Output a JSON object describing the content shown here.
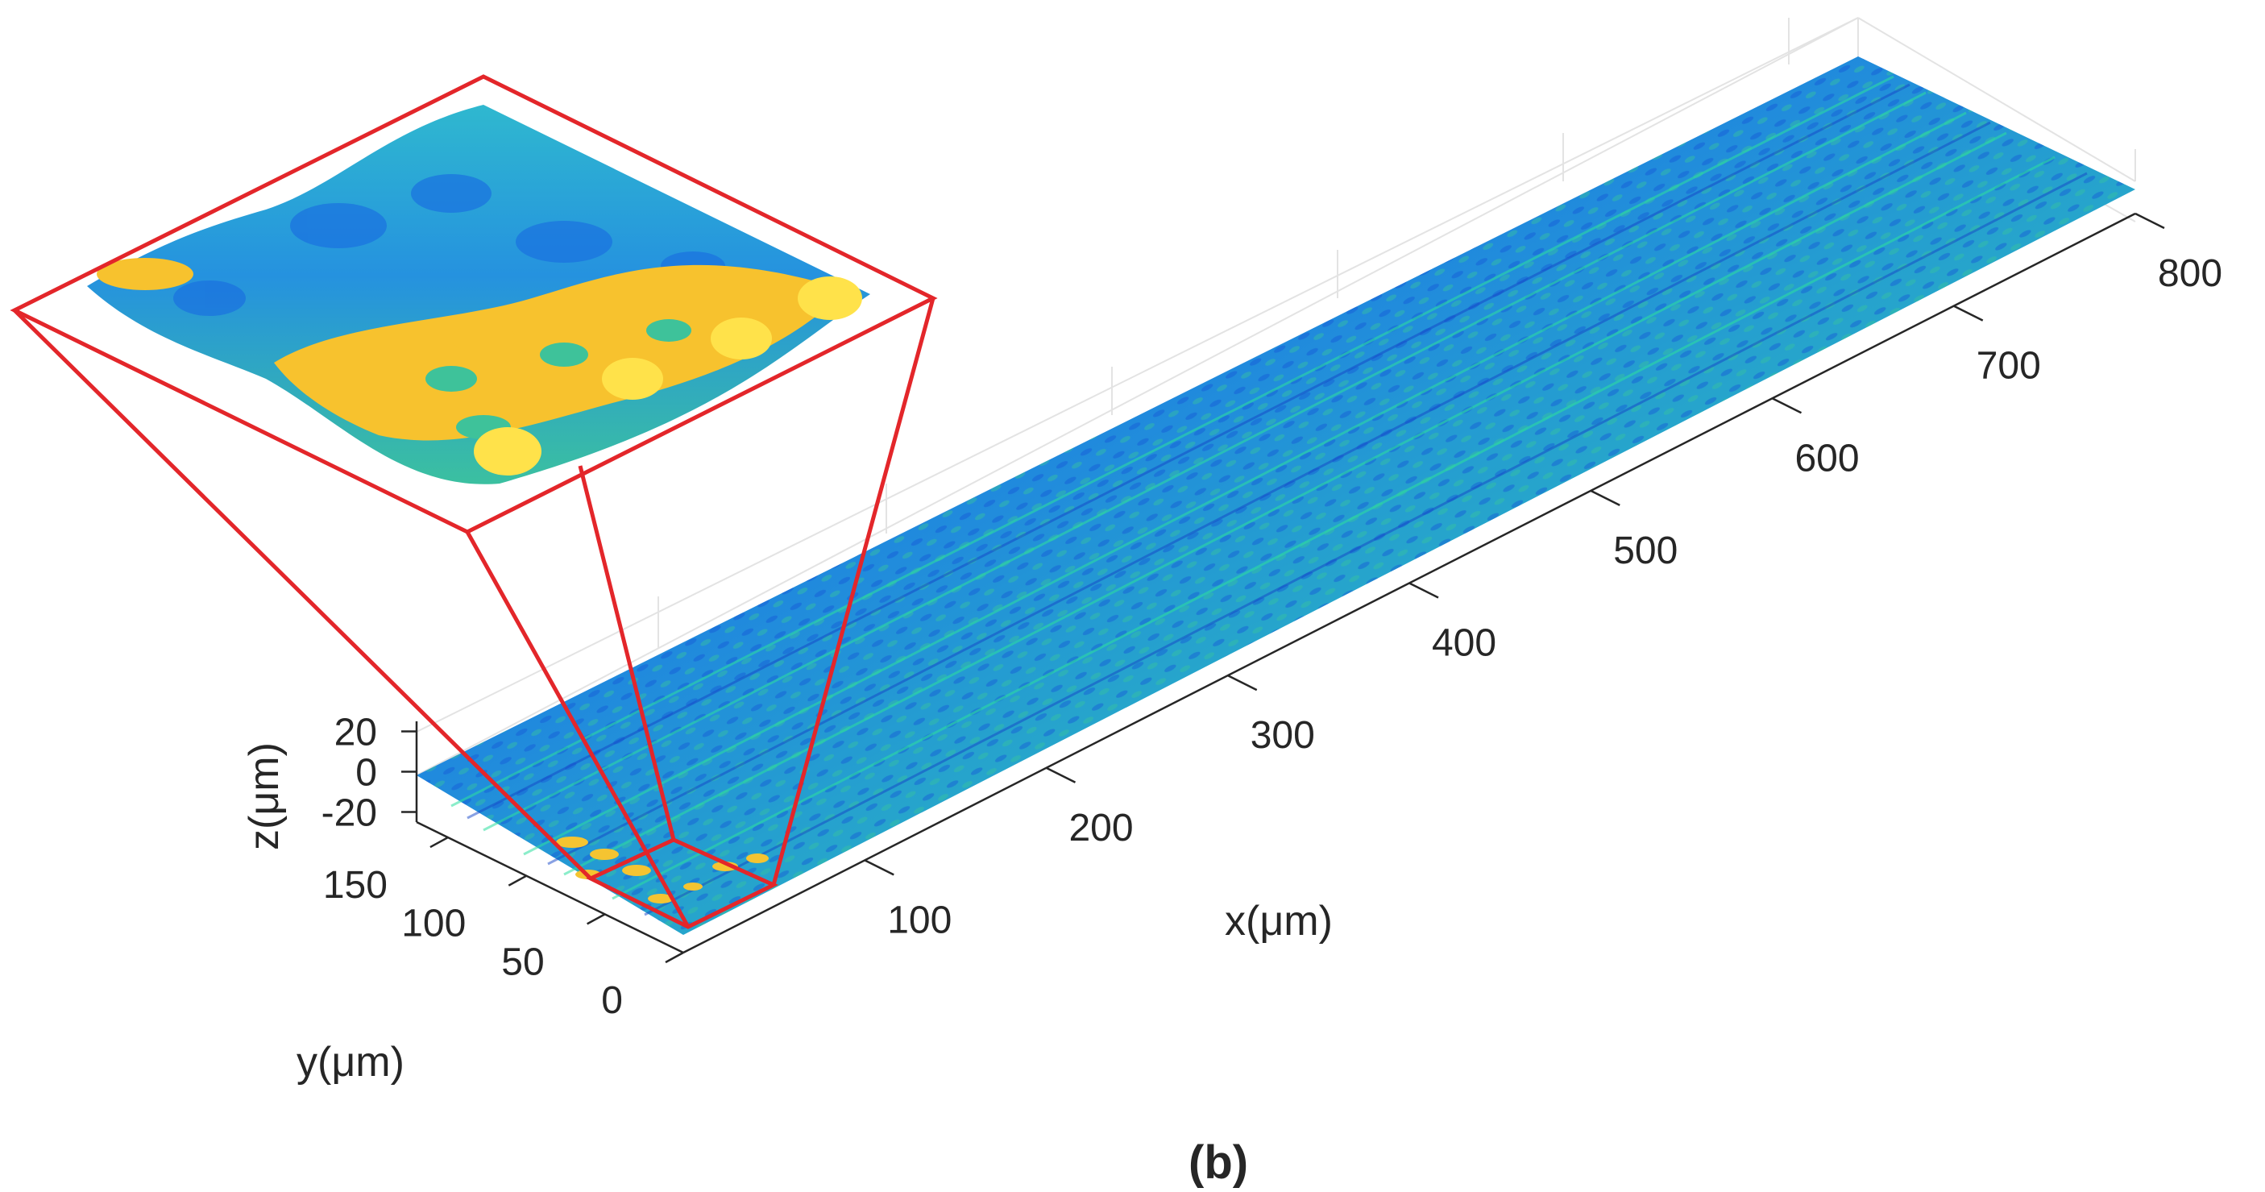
{
  "caption": "(b)",
  "chart_data": {
    "type": "surface3d",
    "xlabel": "x(μm)",
    "ylabel": "y(μm)",
    "zlabel": "z(μm)",
    "x_ticks": [
      100,
      200,
      300,
      400,
      500,
      600,
      700,
      800
    ],
    "y_ticks": [
      0,
      50,
      100,
      150
    ],
    "z_ticks": [
      20,
      0,
      -20
    ],
    "xlim": [
      0,
      800
    ],
    "ylim": [
      0,
      170
    ],
    "zlim": [
      -25,
      25
    ],
    "grid": true,
    "colormap": "parula",
    "colors": {
      "surface_low": "#1f6fe0",
      "surface_mid": "#2bb0c8",
      "surface_high": "#f7c02f",
      "zoom_box": "#e3262a",
      "axis": "#262626",
      "grid": "#e6e6e6"
    },
    "inset": {
      "description_kind": "magnified view",
      "region_x": [
        0,
        45
      ],
      "region_y": [
        0,
        40
      ]
    }
  }
}
